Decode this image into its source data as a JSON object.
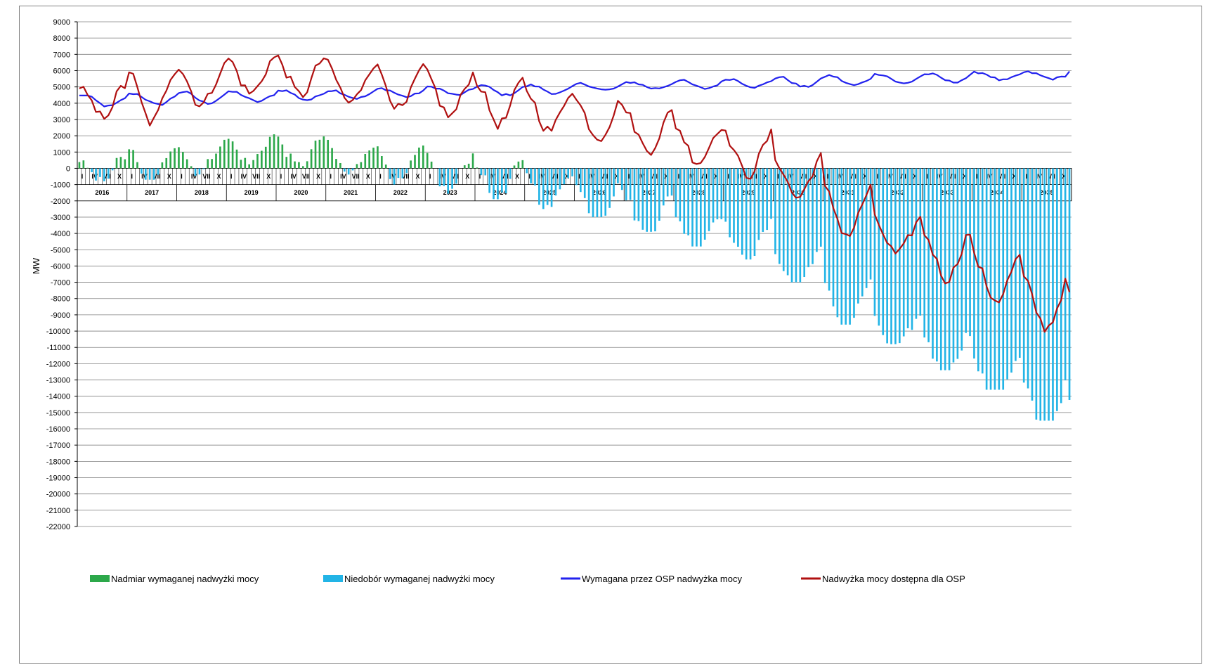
{
  "chart_data": {
    "type": "bar",
    "title": "",
    "ylabel": "MW",
    "xlabel": "",
    "ylim": [
      -22000,
      9000
    ],
    "ytick_step": 1000,
    "grid": true,
    "legend_position": "bottom",
    "colors": {
      "surplus": "#2ca84a",
      "deficit": "#22b4e6",
      "required": "#2222ee",
      "available": "#b01010",
      "grid": "#808080"
    },
    "years": [
      "2016",
      "2017",
      "2018",
      "2019",
      "2020",
      "2021",
      "2022",
      "2023",
      "2024",
      "2025",
      "2026",
      "2027",
      "2028",
      "2029",
      "2030",
      "2031",
      "2032",
      "2033",
      "2034",
      "2035"
    ],
    "month_labels": [
      "I",
      "IV",
      "VII",
      "X"
    ],
    "series": [
      {
        "name": "Nadmiar wymaganej nadwyżki mocy",
        "key": "surplus",
        "kind": "bar",
        "monthly_pattern": [
          700,
          1600,
          1800,
          2100,
          2000,
          2100,
          1400,
          1000,
          500
        ]
      },
      {
        "name": "Niedobór wymaganej nadwyżki mocy",
        "key": "deficit",
        "kind": "bar",
        "monthly_pattern": [
          -900,
          -700,
          -800,
          -900,
          -700,
          -800,
          -1000,
          -1600,
          -1900,
          -2500,
          -3000,
          -3900,
          -4800,
          -5600,
          -7000,
          -9600,
          -10800,
          -12400,
          -13600,
          -15500
        ]
      },
      {
        "name": "Wymagana przez OSP nadwyżka mocy",
        "key": "required",
        "kind": "line",
        "yearly_range": [
          [
            3800,
            4500
          ],
          [
            3900,
            4600
          ],
          [
            4000,
            4700
          ],
          [
            4100,
            4700
          ],
          [
            4200,
            4800
          ],
          [
            4300,
            4800
          ],
          [
            4400,
            4900
          ],
          [
            4500,
            5000
          ],
          [
            4500,
            5100
          ],
          [
            4600,
            5100
          ],
          [
            4800,
            5200
          ],
          [
            4900,
            5300
          ],
          [
            4900,
            5400
          ],
          [
            5000,
            5500
          ],
          [
            5000,
            5600
          ],
          [
            5100,
            5700
          ],
          [
            5200,
            5800
          ],
          [
            5300,
            5800
          ],
          [
            5400,
            5900
          ],
          [
            5500,
            5900
          ]
        ],
        "end_value": 5950
      },
      {
        "name": "Nadwyżka mocy dostępna dla OSP",
        "key": "available",
        "kind": "line",
        "yearly_range": [
          [
            3200,
            5100
          ],
          [
            2800,
            6100
          ],
          [
            3900,
            6300
          ],
          [
            4600,
            6800
          ],
          [
            4500,
            6800
          ],
          [
            4000,
            6400
          ],
          [
            3600,
            6200
          ],
          [
            3200,
            5800
          ],
          [
            2700,
            5400
          ],
          [
            2300,
            4900
          ],
          [
            1900,
            4200
          ],
          [
            1100,
            3500
          ],
          [
            400,
            2700
          ],
          [
            -400,
            2100
          ],
          [
            -1800,
            700
          ],
          [
            -4100,
            -1200
          ],
          [
            -5300,
            -3100
          ],
          [
            -6800,
            -3900
          ],
          [
            -8100,
            -5400
          ],
          [
            -9800,
            -6700
          ]
        ],
        "end_value": -7600
      }
    ]
  }
}
